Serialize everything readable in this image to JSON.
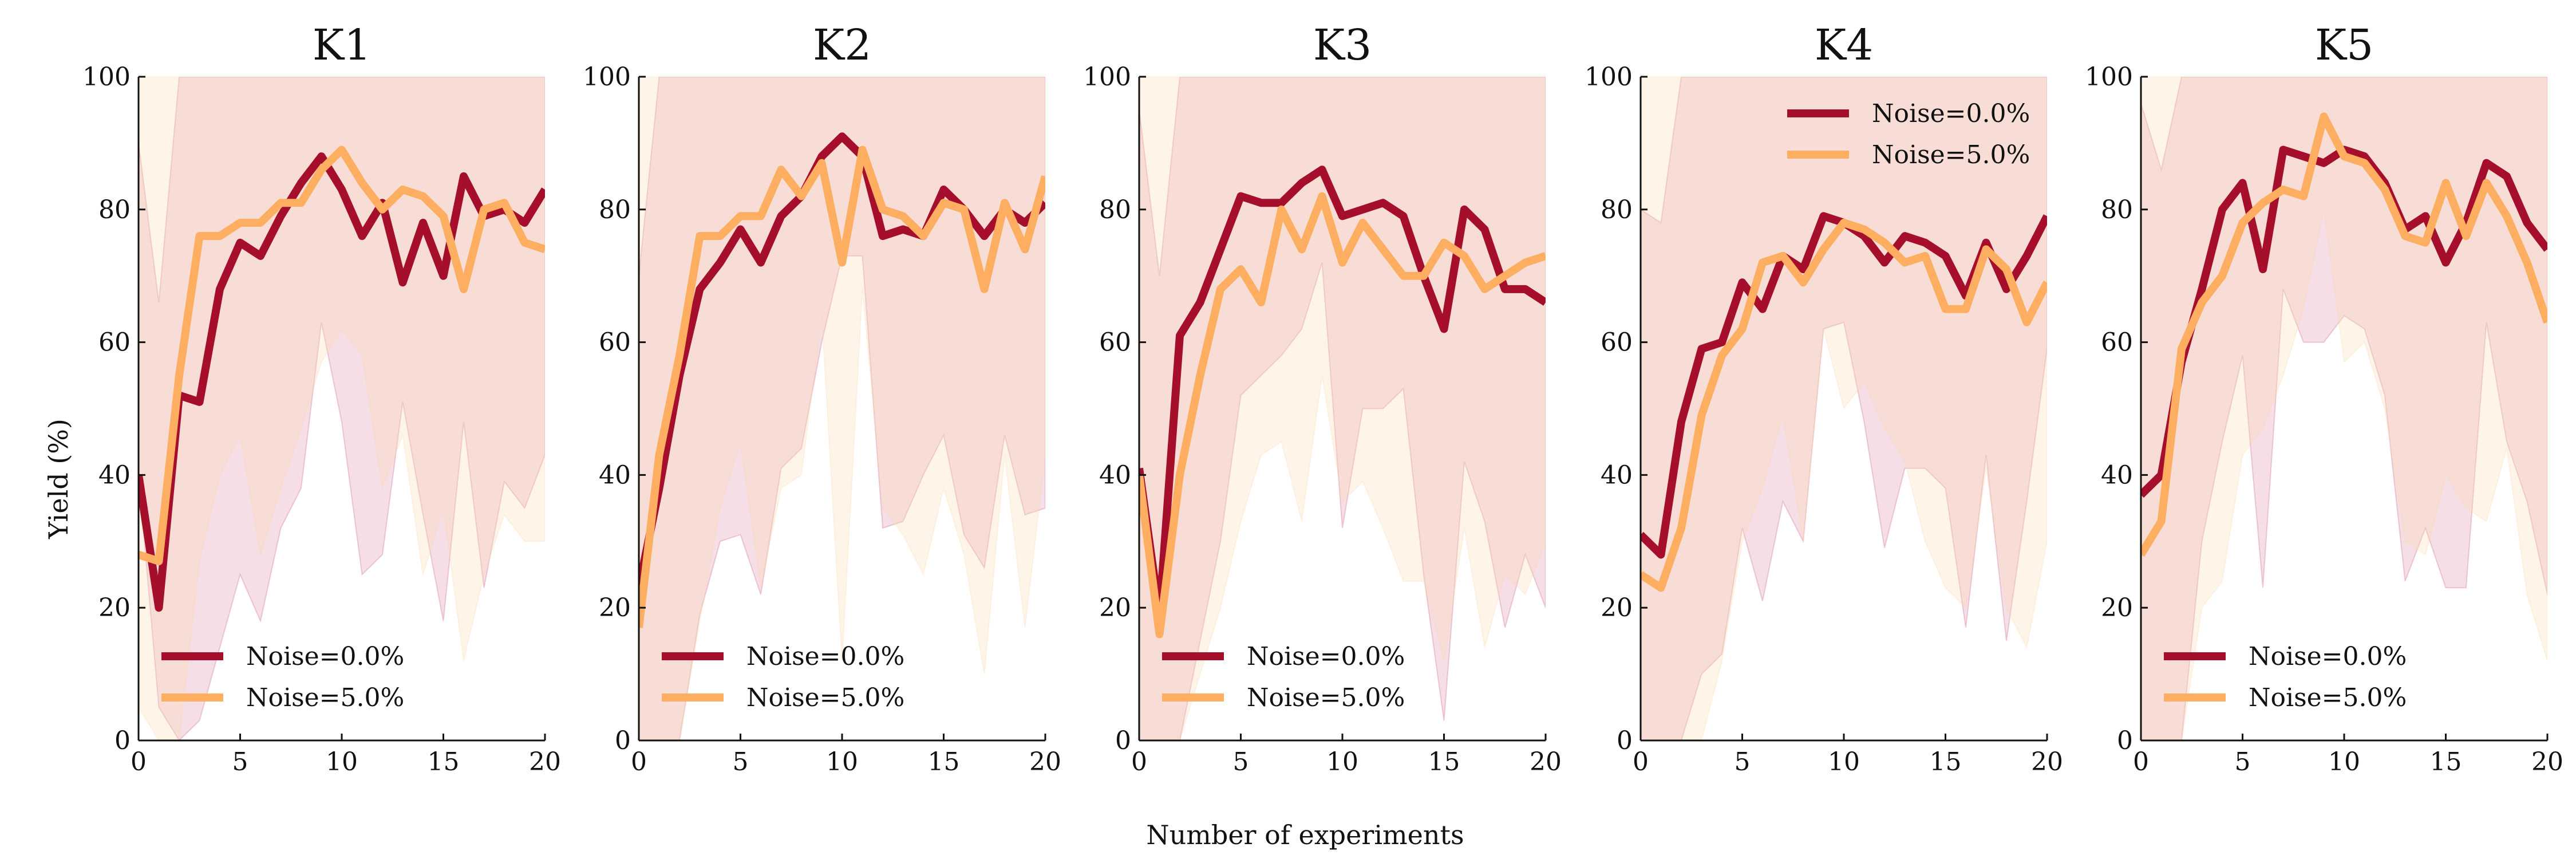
{
  "figure": {
    "xlabel": "Number of experiments",
    "ylabel": "Yield (%)"
  },
  "colors": {
    "noise_0": "#a50f2c",
    "noise_5": "#fdae61",
    "band_0": "#c8466e",
    "band_5": "#fdd9b0"
  },
  "chart_data": [
    {
      "type": "line",
      "title": "K1",
      "xlim": [
        0,
        20
      ],
      "ylim": [
        0,
        100
      ],
      "xticks": [
        0,
        5,
        10,
        15,
        20
      ],
      "yticks": [
        0,
        20,
        40,
        60,
        80,
        100
      ],
      "legend_position": "lower-left",
      "x": [
        0,
        1,
        2,
        3,
        4,
        5,
        6,
        7,
        8,
        9,
        10,
        11,
        12,
        13,
        14,
        15,
        16,
        17,
        18,
        19,
        20
      ],
      "series": [
        {
          "name": "Noise=0.0%",
          "color": "#a50f2c",
          "values": [
            40,
            20,
            52,
            51,
            68,
            75,
            73,
            79,
            84,
            88,
            83,
            76,
            81,
            69,
            78,
            70,
            85,
            79,
            80,
            78,
            83
          ],
          "band_lower": [
            40,
            5,
            0,
            3,
            14,
            25,
            18,
            32,
            38,
            63,
            48,
            25,
            28,
            51,
            34,
            18,
            48,
            23,
            39,
            35,
            43
          ],
          "band_upper": [
            90,
            66,
            100,
            100,
            100,
            100,
            100,
            100,
            100,
            100,
            100,
            100,
            100,
            100,
            100,
            100,
            100,
            100,
            100,
            100,
            100
          ]
        },
        {
          "name": "Noise=5.0%",
          "color": "#fdae61",
          "values": [
            28,
            27,
            55,
            76,
            76,
            78,
            78,
            81,
            81,
            86,
            89,
            84,
            80,
            83,
            82,
            79,
            68,
            80,
            81,
            75,
            74
          ],
          "band_lower": [
            5,
            0,
            0,
            27,
            40,
            46,
            28,
            38,
            47,
            57,
            62,
            58,
            38,
            46,
            25,
            35,
            12,
            25,
            34,
            30,
            30
          ],
          "band_upper": [
            100,
            100,
            100,
            100,
            100,
            100,
            100,
            100,
            100,
            100,
            100,
            100,
            100,
            100,
            100,
            100,
            100,
            100,
            100,
            100,
            100
          ]
        }
      ]
    },
    {
      "type": "line",
      "title": "K2",
      "xlim": [
        0,
        20
      ],
      "ylim": [
        0,
        100
      ],
      "xticks": [
        0,
        5,
        10,
        15,
        20
      ],
      "yticks": [
        0,
        20,
        40,
        60,
        80,
        100
      ],
      "legend_position": "lower-left",
      "x": [
        0,
        1,
        2,
        3,
        4,
        5,
        6,
        7,
        8,
        9,
        10,
        11,
        12,
        13,
        14,
        15,
        16,
        17,
        18,
        19,
        20
      ],
      "series": [
        {
          "name": "Noise=0.0%",
          "color": "#a50f2c",
          "values": [
            23,
            38,
            55,
            68,
            72,
            77,
            72,
            79,
            82,
            88,
            91,
            88,
            76,
            77,
            76,
            83,
            80,
            76,
            80,
            78,
            81
          ],
          "band_lower": [
            0,
            0,
            0,
            19,
            30,
            31,
            22,
            41,
            44,
            60,
            73,
            73,
            32,
            33,
            40,
            46,
            31,
            26,
            46,
            34,
            35
          ],
          "band_upper": [
            70,
            100,
            100,
            100,
            100,
            100,
            100,
            100,
            100,
            100,
            100,
            100,
            100,
            100,
            100,
            100,
            100,
            100,
            100,
            100,
            100
          ]
        },
        {
          "name": "Noise=5.0%",
          "color": "#fdae61",
          "values": [
            17,
            43,
            58,
            76,
            76,
            79,
            79,
            86,
            82,
            87,
            72,
            89,
            80,
            79,
            76,
            81,
            80,
            68,
            81,
            74,
            85
          ],
          "band_lower": [
            0,
            0,
            0,
            18,
            35,
            45,
            23,
            38,
            40,
            64,
            12,
            68,
            35,
            31,
            25,
            38,
            28,
            10,
            43,
            17,
            43
          ],
          "band_upper": [
            100,
            100,
            100,
            100,
            100,
            100,
            100,
            100,
            100,
            100,
            100,
            100,
            100,
            100,
            100,
            100,
            100,
            100,
            100,
            100,
            100
          ]
        }
      ]
    },
    {
      "type": "line",
      "title": "K3",
      "xlim": [
        0,
        20
      ],
      "ylim": [
        0,
        100
      ],
      "xticks": [
        0,
        5,
        10,
        15,
        20
      ],
      "yticks": [
        0,
        20,
        40,
        60,
        80,
        100
      ],
      "legend_position": "lower-left",
      "x": [
        0,
        1,
        2,
        3,
        4,
        5,
        6,
        7,
        8,
        9,
        10,
        11,
        12,
        13,
        14,
        15,
        16,
        17,
        18,
        19,
        20
      ],
      "series": [
        {
          "name": "Noise=0.0%",
          "color": "#a50f2c",
          "values": [
            41,
            19,
            61,
            66,
            74,
            82,
            81,
            81,
            84,
            86,
            79,
            80,
            81,
            79,
            70,
            62,
            80,
            77,
            68,
            68,
            66
          ],
          "band_lower": [
            0,
            0,
            0,
            15,
            30,
            52,
            55,
            58,
            62,
            72,
            32,
            50,
            50,
            53,
            25,
            3,
            42,
            33,
            17,
            28,
            20
          ],
          "band_upper": [
            95,
            70,
            100,
            100,
            100,
            100,
            100,
            100,
            100,
            100,
            100,
            100,
            100,
            100,
            100,
            100,
            100,
            100,
            100,
            100,
            100
          ]
        },
        {
          "name": "Noise=5.0%",
          "color": "#fdae61",
          "values": [
            40,
            16,
            40,
            55,
            68,
            71,
            66,
            80,
            74,
            82,
            72,
            78,
            74,
            70,
            70,
            75,
            73,
            68,
            70,
            72,
            73
          ],
          "band_lower": [
            0,
            0,
            0,
            10,
            20,
            33,
            43,
            45,
            33,
            55,
            36,
            39,
            32,
            24,
            24,
            12,
            32,
            14,
            25,
            22,
            30
          ],
          "band_upper": [
            100,
            100,
            100,
            100,
            100,
            100,
            100,
            100,
            100,
            100,
            100,
            100,
            100,
            100,
            100,
            100,
            100,
            100,
            100,
            100,
            100
          ]
        }
      ]
    },
    {
      "type": "line",
      "title": "K4",
      "xlim": [
        0,
        20
      ],
      "ylim": [
        0,
        100
      ],
      "xticks": [
        0,
        5,
        10,
        15,
        20
      ],
      "yticks": [
        0,
        20,
        40,
        60,
        80,
        100
      ],
      "legend_position": "top-right",
      "x": [
        0,
        1,
        2,
        3,
        4,
        5,
        6,
        7,
        8,
        9,
        10,
        11,
        12,
        13,
        14,
        15,
        16,
        17,
        18,
        19,
        20
      ],
      "series": [
        {
          "name": "Noise=0.0%",
          "color": "#a50f2c",
          "values": [
            31,
            28,
            48,
            59,
            60,
            69,
            65,
            73,
            71,
            79,
            78,
            76,
            72,
            76,
            75,
            73,
            67,
            75,
            68,
            73,
            79
          ],
          "band_lower": [
            0,
            0,
            0,
            10,
            13,
            32,
            21,
            36,
            30,
            62,
            63,
            48,
            29,
            41,
            41,
            38,
            17,
            43,
            15,
            36,
            59
          ],
          "band_upper": [
            80,
            78,
            100,
            100,
            100,
            100,
            100,
            100,
            100,
            100,
            100,
            100,
            100,
            100,
            100,
            100,
            100,
            100,
            100,
            100,
            100
          ]
        },
        {
          "name": "Noise=5.0%",
          "color": "#fdae61",
          "values": [
            25,
            23,
            32,
            49,
            58,
            62,
            72,
            73,
            69,
            74,
            78,
            77,
            75,
            72,
            73,
            65,
            65,
            74,
            71,
            63,
            69
          ],
          "band_lower": [
            0,
            0,
            0,
            0,
            12,
            30,
            38,
            49,
            30,
            62,
            50,
            54,
            47,
            42,
            30,
            23,
            20,
            41,
            20,
            14,
            30
          ],
          "band_upper": [
            100,
            100,
            100,
            100,
            100,
            100,
            100,
            100,
            100,
            100,
            100,
            100,
            100,
            100,
            100,
            100,
            100,
            100,
            100,
            100,
            100
          ]
        }
      ]
    },
    {
      "type": "line",
      "title": "K5",
      "xlim": [
        0,
        20
      ],
      "ylim": [
        0,
        100
      ],
      "xticks": [
        0,
        5,
        10,
        15,
        20
      ],
      "yticks": [
        0,
        20,
        40,
        60,
        80,
        100
      ],
      "legend_position": "lower-left",
      "x": [
        0,
        1,
        2,
        3,
        4,
        5,
        6,
        7,
        8,
        9,
        10,
        11,
        12,
        13,
        14,
        15,
        16,
        17,
        18,
        19,
        20
      ],
      "series": [
        {
          "name": "Noise=0.0%",
          "color": "#a50f2c",
          "values": [
            37,
            40,
            57,
            68,
            80,
            84,
            71,
            89,
            88,
            87,
            89,
            88,
            84,
            77,
            79,
            72,
            78,
            87,
            85,
            78,
            74
          ],
          "band_lower": [
            0,
            0,
            0,
            30,
            45,
            58,
            23,
            68,
            60,
            60,
            64,
            62,
            52,
            24,
            32,
            23,
            23,
            63,
            45,
            36,
            22
          ],
          "band_upper": [
            96,
            86,
            100,
            100,
            100,
            100,
            100,
            100,
            100,
            100,
            100,
            100,
            100,
            100,
            100,
            100,
            100,
            100,
            100,
            100,
            100
          ]
        },
        {
          "name": "Noise=5.0%",
          "color": "#fdae61",
          "values": [
            28,
            33,
            59,
            66,
            70,
            78,
            81,
            83,
            82,
            94,
            88,
            87,
            83,
            76,
            75,
            84,
            76,
            84,
            79,
            72,
            63
          ],
          "band_lower": [
            0,
            0,
            0,
            20,
            24,
            43,
            47,
            55,
            65,
            80,
            57,
            60,
            50,
            30,
            28,
            40,
            35,
            33,
            44,
            22,
            12
          ],
          "band_upper": [
            100,
            100,
            100,
            100,
            100,
            100,
            100,
            100,
            100,
            100,
            100,
            100,
            100,
            100,
            100,
            100,
            100,
            100,
            100,
            100,
            100
          ]
        }
      ]
    }
  ]
}
